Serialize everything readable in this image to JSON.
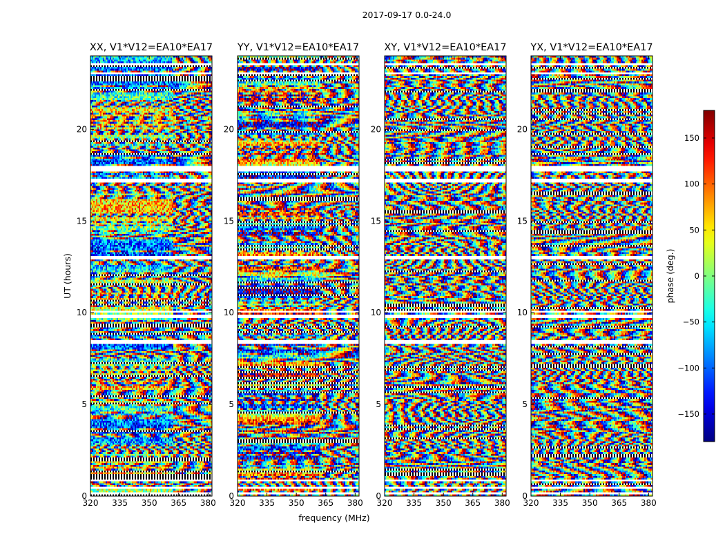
{
  "figure_title": "2017-09-17 0.0-24.0",
  "chart_data": {
    "type": "heatmap",
    "title": "2017-09-17 0.0-24.0",
    "xlabel": "frequency (MHz)",
    "ylabel": "UT (hours)",
    "xlim": [
      320,
      382
    ],
    "ylim": [
      0,
      24
    ],
    "x_ticks": [
      320,
      335,
      350,
      365,
      380
    ],
    "y_ticks": [
      0,
      5,
      10,
      15,
      20
    ],
    "colormap": "jet",
    "colorbar": {
      "label": "phase (deg.)",
      "range": [
        -180,
        180
      ],
      "ticks": [
        -150,
        -100,
        -50,
        0,
        50,
        100,
        150
      ],
      "tick_labels": [
        "−150",
        "−100",
        "−50",
        "0",
        "50",
        "100",
        "150"
      ]
    },
    "panels": [
      {
        "title": "XX, V1*V12=EA10*EA17",
        "polarization": "XX"
      },
      {
        "title": "YY, V1*V12=EA10*EA17",
        "polarization": "YY"
      },
      {
        "title": "XY, V1*V12=EA10*EA17",
        "polarization": "XY"
      },
      {
        "title": "YX, V1*V12=EA10*EA17",
        "polarization": "YX"
      }
    ],
    "flagged_ut_hours": [
      [
        0.1,
        0.2
      ],
      [
        0.45,
        0.55
      ],
      [
        0.85,
        0.9
      ],
      [
        4.05,
        4.15
      ],
      [
        8.35,
        8.45
      ],
      [
        9.75,
        9.85
      ],
      [
        10.0,
        10.1
      ],
      [
        12.95,
        13.05
      ],
      [
        17.05,
        17.3
      ],
      [
        17.75,
        18.0
      ],
      [
        23.0,
        23.1
      ],
      [
        23.5,
        23.6
      ]
    ]
  }
}
